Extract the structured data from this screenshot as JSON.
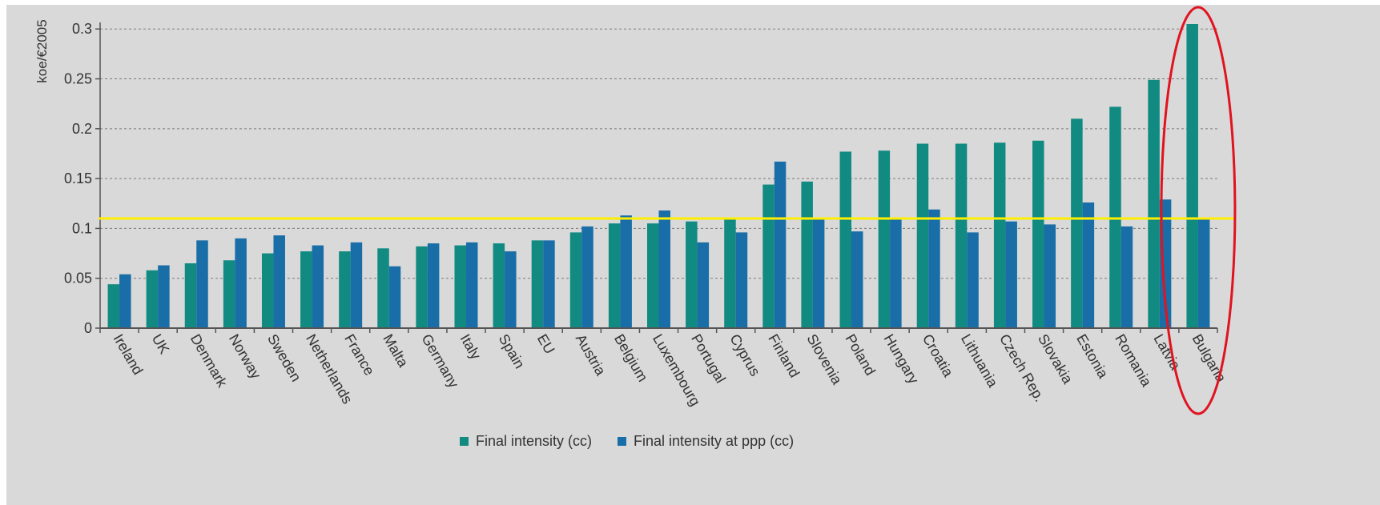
{
  "chart_data": {
    "type": "bar",
    "ylabel": "koe/€2005",
    "ylim": [
      0,
      0.305
    ],
    "yticks": [
      "0",
      "0.05",
      "0.1",
      "0.15",
      "0.2",
      "0.25",
      "0.3"
    ],
    "ytick_values": [
      0,
      0.05,
      0.1,
      0.15,
      0.2,
      0.25,
      0.3
    ],
    "grid": "horizontal dashed",
    "legend_position": "bottom-center",
    "categories": [
      "Ireland",
      "UK",
      "Denmark",
      "Norway",
      "Sweden",
      "Netherlands",
      "France",
      "Malta",
      "Germany",
      "Italy",
      "Spain",
      "EU",
      "Austria",
      "Belgium",
      "Luxembourg",
      "Portugal",
      "Cyprus",
      "Finland",
      "Slovenia",
      "Poland",
      "Hungary",
      "Croatia",
      "Lithuania",
      "Czech Rep.",
      "Slovakia",
      "Estonia",
      "Romania",
      "Latvia",
      "Bulgaria"
    ],
    "series": [
      {
        "name": "Final intensity (cc)",
        "color": "#118a82",
        "values": [
          0.044,
          0.058,
          0.065,
          0.068,
          0.075,
          0.077,
          0.077,
          0.08,
          0.082,
          0.083,
          0.085,
          0.088,
          0.096,
          0.105,
          0.105,
          0.107,
          0.11,
          0.144,
          0.147,
          0.177,
          0.178,
          0.185,
          0.185,
          0.186,
          0.188,
          0.21,
          0.222,
          0.249,
          0.305
        ]
      },
      {
        "name": "Final intensity at ppp (cc)",
        "color": "#1a6ea8",
        "values": [
          0.054,
          0.063,
          0.088,
          0.09,
          0.093,
          0.083,
          0.086,
          0.062,
          0.085,
          0.086,
          0.077,
          0.088,
          0.102,
          0.113,
          0.118,
          0.086,
          0.096,
          0.167,
          0.109,
          0.097,
          0.109,
          0.119,
          0.096,
          0.107,
          0.104,
          0.126,
          0.102,
          0.129,
          0.109
        ]
      }
    ],
    "annotations": {
      "reference_line": {
        "value": 0.11,
        "color": "#ffee00"
      },
      "highlight_ellipse": {
        "category": "Bulgaria",
        "color": "#e0131f"
      }
    }
  }
}
